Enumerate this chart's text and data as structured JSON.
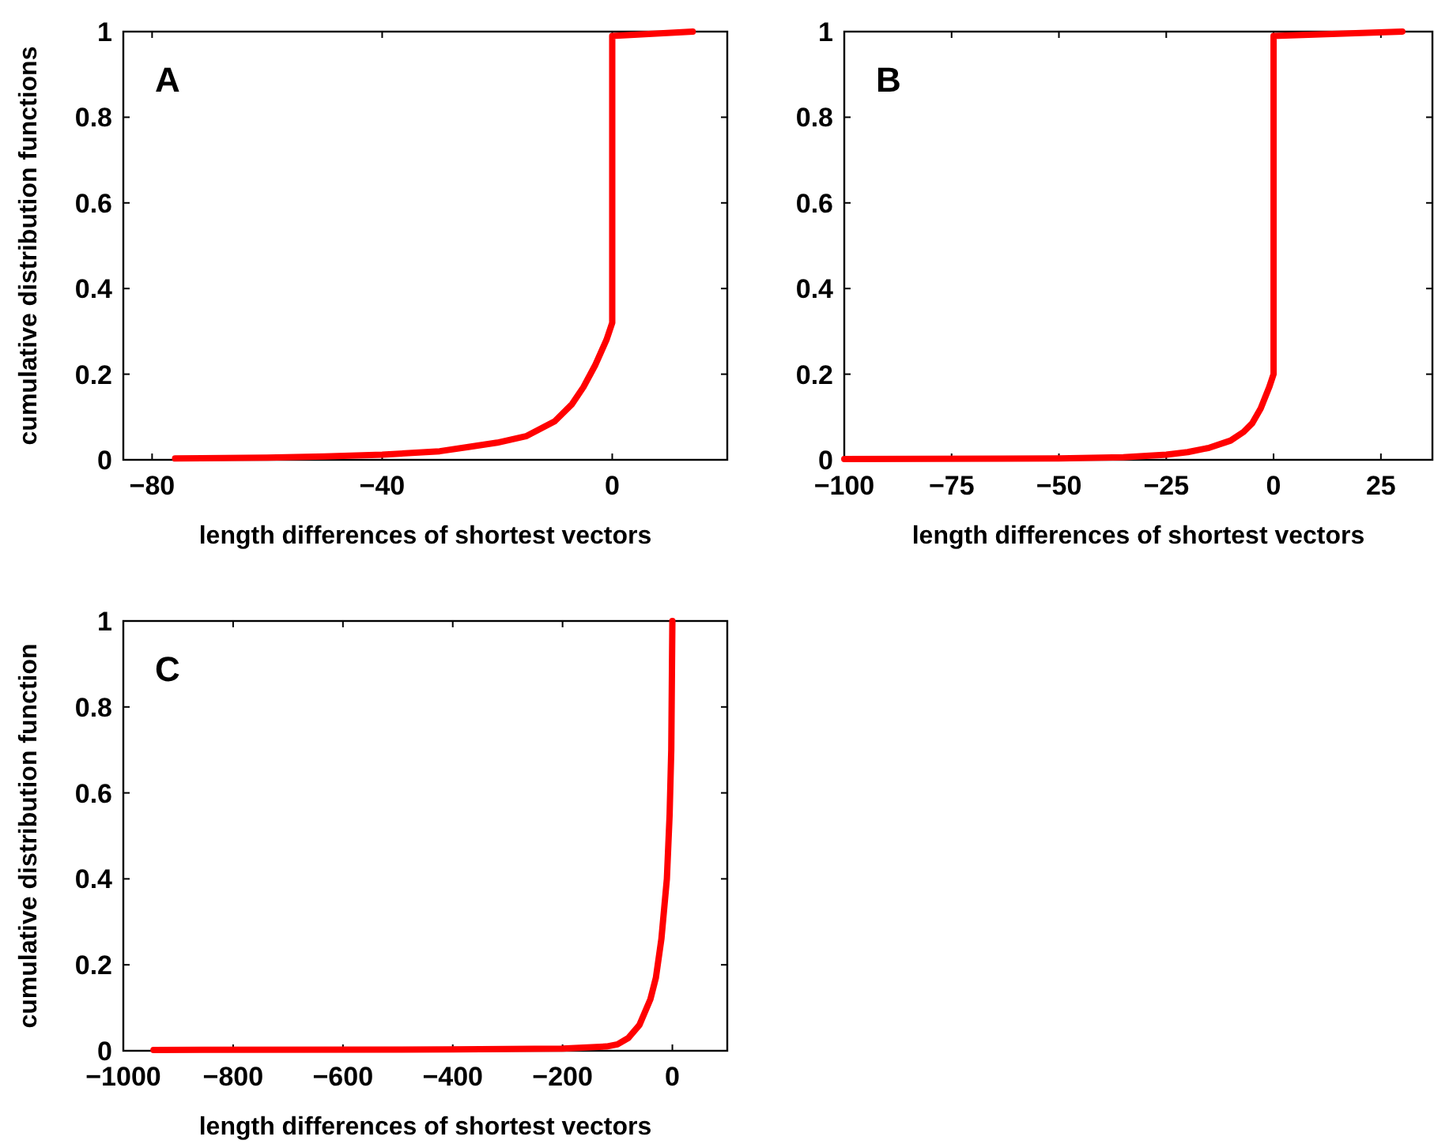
{
  "chart_data": [
    {
      "type": "line",
      "annotations": [
        "A"
      ],
      "xlabel": "length differences of shortest vectors",
      "ylabel": "cumulative distribution functions",
      "xlim": [
        -85,
        20
      ],
      "xticks": [
        {
          "value": -80,
          "label": "−80"
        },
        {
          "value": -40,
          "label": "−40"
        },
        {
          "value": 0,
          "label": "0"
        }
      ],
      "ylim": [
        0,
        1
      ],
      "yticks": [
        0,
        0.2,
        0.4,
        0.6,
        0.8,
        1
      ],
      "grid": false,
      "marker": "none",
      "line_style": "solid",
      "series": [
        {
          "color": "#ff0000",
          "x": [
            -76,
            -60,
            -50,
            -40,
            -30,
            -25,
            -20,
            -15,
            -10,
            -7,
            -5,
            -3,
            -1,
            0,
            0,
            14
          ],
          "values": [
            0.003,
            0.005,
            0.008,
            0.012,
            0.02,
            0.03,
            0.04,
            0.055,
            0.09,
            0.13,
            0.17,
            0.22,
            0.28,
            0.32,
            0.99,
            1
          ]
        }
      ]
    },
    {
      "type": "line",
      "annotations": [
        "B"
      ],
      "xlabel": "length differences of shortest vectors",
      "xlim": [
        -100,
        37
      ],
      "xticks": [
        {
          "value": -100,
          "label": "−100"
        },
        {
          "value": -75,
          "label": "−75"
        },
        {
          "value": -50,
          "label": "−50"
        },
        {
          "value": -25,
          "label": "−25"
        },
        {
          "value": 0,
          "label": "0"
        },
        {
          "value": 25,
          "label": "25"
        }
      ],
      "ylim": [
        0,
        1
      ],
      "yticks": [
        0,
        0.2,
        0.4,
        0.6,
        0.8,
        1
      ],
      "grid": false,
      "marker": "none",
      "line_style": "solid",
      "series": [
        {
          "color": "#ff0000",
          "x": [
            -100,
            -50,
            -35,
            -25,
            -20,
            -15,
            -10,
            -7,
            -5,
            -3,
            -1,
            0,
            0,
            30
          ],
          "values": [
            0.002,
            0.003,
            0.006,
            0.012,
            0.018,
            0.028,
            0.045,
            0.065,
            0.085,
            0.12,
            0.17,
            0.2,
            0.99,
            1
          ]
        }
      ]
    },
    {
      "type": "line",
      "annotations": [
        "C"
      ],
      "xlabel": "length differences of shortest vectors",
      "ylabel": "cumulative distribution function",
      "xlim": [
        -1000,
        100
      ],
      "xticks": [
        {
          "value": -1000,
          "label": "−1000"
        },
        {
          "value": -800,
          "label": "−800"
        },
        {
          "value": -600,
          "label": "−600"
        },
        {
          "value": -400,
          "label": "−400"
        },
        {
          "value": -200,
          "label": "−200"
        },
        {
          "value": 0,
          "label": "0"
        }
      ],
      "ylim": [
        0,
        1
      ],
      "yticks": [
        0,
        0.2,
        0.4,
        0.6,
        0.8,
        1
      ],
      "grid": false,
      "marker": "none",
      "line_style": "solid",
      "series": [
        {
          "color": "#ff0000",
          "x": [
            -945,
            -400,
            -200,
            -120,
            -100,
            -80,
            -60,
            -40,
            -30,
            -20,
            -10,
            -5,
            -2,
            0
          ],
          "values": [
            0.002,
            0.003,
            0.005,
            0.01,
            0.015,
            0.03,
            0.06,
            0.12,
            0.17,
            0.26,
            0.4,
            0.55,
            0.7,
            1
          ]
        }
      ]
    }
  ]
}
